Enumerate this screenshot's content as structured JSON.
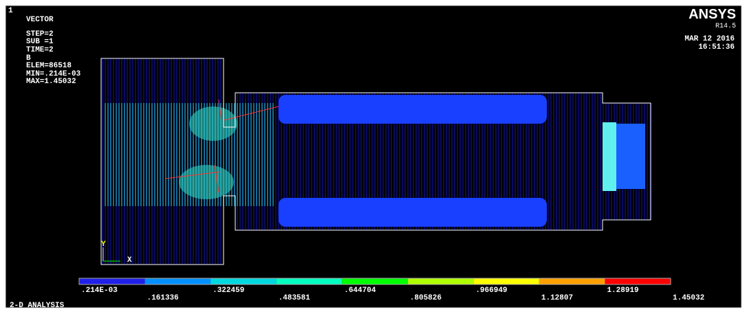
{
  "window_number": "1",
  "plot": {
    "lines": [
      "VECTOR",
      "STEP=2",
      "SUB =1",
      "TIME=2",
      "B",
      "ELEM=86518",
      "MIN=.214E-03",
      "MAX=1.45032"
    ]
  },
  "brand": {
    "name": "ANSYS",
    "version": "R14.5",
    "date": "MAR 12 2016",
    "time": "16:51:36"
  },
  "axes": {
    "y": "Y",
    "x": "X"
  },
  "legend": {
    "colors": [
      "#2020e8",
      "#0090ff",
      "#00d8e0",
      "#00ffc0",
      "#00ff00",
      "#b0ff00",
      "#ffff00",
      "#ffa000",
      "#ff0000"
    ],
    "labels": [
      ".214E-03",
      ".161336",
      ".322459",
      ".483581",
      ".644704",
      ".805826",
      ".966949",
      "1.12807",
      "1.28919",
      "1.45032"
    ]
  },
  "footer": "2-D ANALYSIS"
}
